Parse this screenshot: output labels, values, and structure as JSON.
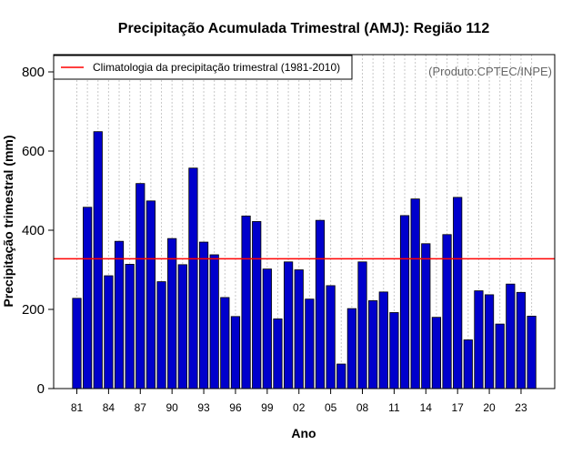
{
  "chart_data": {
    "type": "bar",
    "title": "Precipitação Acumulada Trimestral (AMJ): Região 112",
    "xlabel": "Ano",
    "ylabel": "Precipitação trimestral (mm)",
    "ylim": [
      0,
      850
    ],
    "yticks": [
      0,
      200,
      400,
      600,
      800
    ],
    "categories": [
      "1981",
      "1982",
      "1983",
      "1984",
      "1985",
      "1986",
      "1987",
      "1988",
      "1989",
      "1990",
      "1991",
      "1992",
      "1993",
      "1994",
      "1995",
      "1996",
      "1997",
      "1998",
      "1999",
      "2000",
      "2001",
      "2002",
      "2003",
      "2004",
      "2005",
      "2006",
      "2007",
      "2008",
      "2009",
      "2010",
      "2011",
      "2012",
      "2013",
      "2014",
      "2015",
      "2016",
      "2017",
      "2018",
      "2019",
      "2020",
      "2021",
      "2022",
      "2023",
      "2024"
    ],
    "xtick_labels": [
      "81",
      "84",
      "87",
      "90",
      "93",
      "96",
      "99",
      "02",
      "05",
      "08",
      "11",
      "14",
      "17",
      "20",
      "23"
    ],
    "values": [
      228,
      458,
      649,
      285,
      372,
      314,
      518,
      474,
      270,
      379,
      313,
      557,
      370,
      338,
      230,
      182,
      436,
      422,
      302,
      176,
      320,
      300,
      226,
      425,
      260,
      62,
      202,
      320,
      222,
      244,
      192,
      437,
      479,
      366,
      180,
      389,
      483,
      123,
      247,
      237,
      163,
      264,
      243,
      183
    ],
    "bar_color": "#0000cc",
    "climatology": {
      "value": 328,
      "label": "Climatologia da precipitação trimestral (1981-2010)",
      "color": "#ff0000"
    },
    "legend_position": "top-left",
    "grid": "vertical-dotted",
    "source_note": "(Produto:CPTEC/INPE)"
  }
}
